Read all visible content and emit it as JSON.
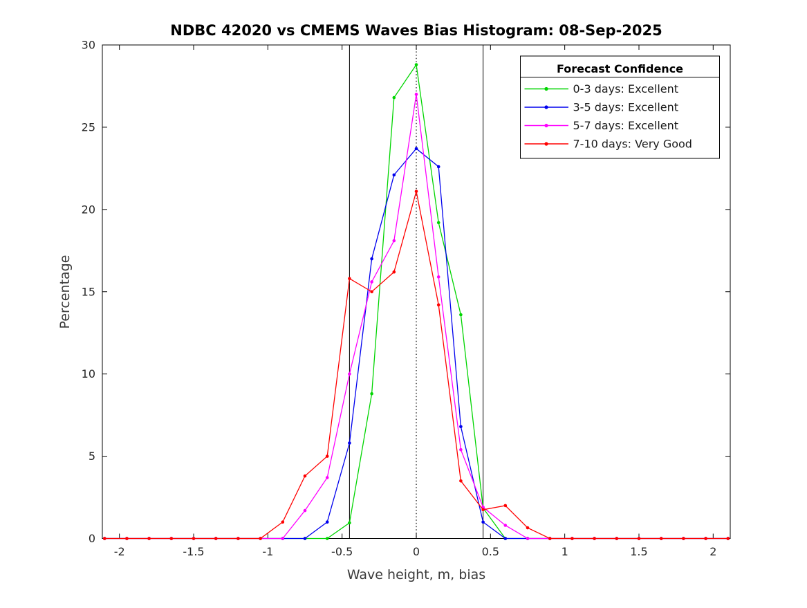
{
  "figure": {
    "background_color": "#ffffff"
  },
  "chart_data": {
    "type": "line",
    "title": "NDBC 42020 vs CMEMS Waves Bias Histogram: 08-Sep-2025",
    "xlabel": "Wave height, m, bias",
    "ylabel": "Percentage",
    "xlim": [
      -2.115,
      2.115
    ],
    "ylim": [
      0,
      30
    ],
    "grid": false,
    "x_ticks": [
      -2,
      -1.5,
      -1,
      -0.5,
      0,
      0.5,
      1,
      1.5,
      2
    ],
    "x_tick_labels": [
      "-2",
      "-1.5",
      "-1",
      "-0.5",
      "0",
      "0.5",
      "1",
      "1.5",
      "2"
    ],
    "y_ticks": [
      0,
      5,
      10,
      15,
      20,
      25,
      30
    ],
    "y_tick_labels": [
      "0",
      "5",
      "10",
      "15",
      "20",
      "25",
      "30"
    ],
    "reference_lines": {
      "solid_vertical": [
        -0.45,
        0.45
      ],
      "dotted_vertical": [
        0
      ],
      "color": "#000000"
    },
    "x": [
      -2.1,
      -1.95,
      -1.8,
      -1.65,
      -1.5,
      -1.35,
      -1.2,
      -1.05,
      -0.9,
      -0.75,
      -0.6,
      -0.45,
      -0.3,
      -0.15,
      0,
      0.15,
      0.3,
      0.45,
      0.6,
      0.75,
      0.9,
      1.05,
      1.2,
      1.35,
      1.5,
      1.65,
      1.8,
      1.95,
      2.1
    ],
    "series": [
      {
        "name": "0-3 days: Excellent",
        "color": "#00d500",
        "values": [
          0,
          0,
          0,
          0,
          0,
          0,
          0,
          0,
          0,
          0,
          0,
          0.95,
          8.8,
          26.8,
          28.8,
          19.2,
          13.6,
          1.85,
          0,
          0,
          0,
          0,
          0,
          0,
          0,
          0,
          0,
          0,
          0
        ]
      },
      {
        "name": "3-5 days: Excellent",
        "color": "#0000ee",
        "values": [
          0,
          0,
          0,
          0,
          0,
          0,
          0,
          0,
          0,
          0,
          1.0,
          5.8,
          17.0,
          22.1,
          23.7,
          22.6,
          6.8,
          1.0,
          0,
          0,
          0,
          0,
          0,
          0,
          0,
          0,
          0,
          0,
          0
        ]
      },
      {
        "name": "5-7 days: Excellent",
        "color": "#ff00ff",
        "values": [
          0,
          0,
          0,
          0,
          0,
          0,
          0,
          0,
          0,
          1.7,
          3.7,
          10.0,
          15.6,
          18.1,
          27.0,
          15.9,
          5.4,
          1.9,
          0.8,
          0,
          0,
          0,
          0,
          0,
          0,
          0,
          0,
          0,
          0
        ]
      },
      {
        "name": "7-10 days: Very Good",
        "color": "#ff0000",
        "values": [
          0,
          0,
          0,
          0,
          0,
          0,
          0,
          0,
          1.0,
          3.8,
          5.0,
          15.8,
          15.0,
          16.2,
          21.1,
          14.2,
          3.5,
          1.75,
          2.0,
          0.65,
          0,
          0,
          0,
          0,
          0,
          0,
          0,
          0,
          0
        ]
      }
    ],
    "legend": {
      "title": "Forecast Confidence",
      "position": "upper-right",
      "entries": [
        "0-3 days: Excellent",
        "3-5 days: Excellent",
        "5-7 days: Excellent",
        "7-10 days: Very Good"
      ]
    }
  }
}
